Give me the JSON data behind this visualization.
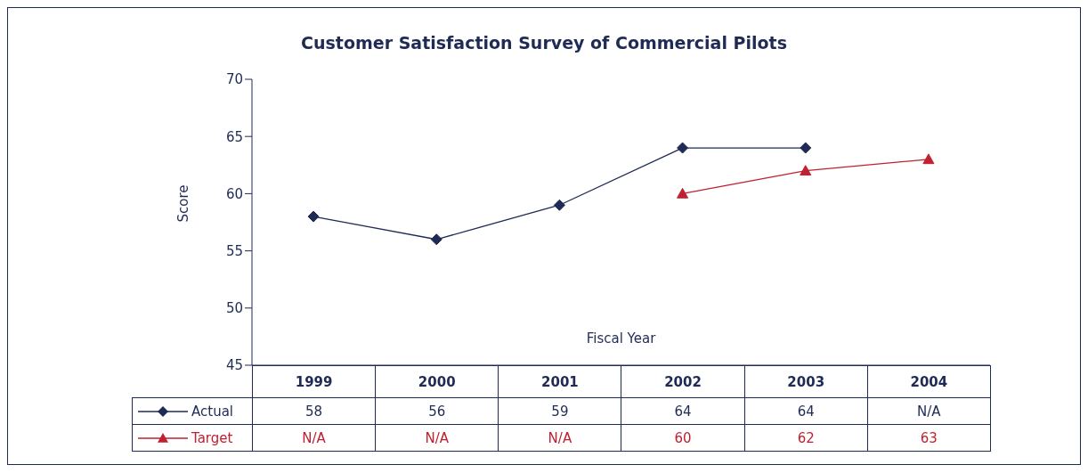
{
  "chart_data": {
    "type": "line",
    "title": "Customer Satisfaction Survey of Commercial Pilots",
    "xlabel": "Fiscal Year",
    "ylabel": "Score",
    "categories": [
      "1999",
      "2000",
      "2001",
      "2002",
      "2003",
      "2004"
    ],
    "series": [
      {
        "name": "Actual",
        "color": "#1f2a55",
        "marker": "diamond",
        "values": [
          58,
          56,
          59,
          64,
          64,
          null
        ],
        "value_labels": [
          "58",
          "56",
          "59",
          "64",
          "64",
          "N/A"
        ]
      },
      {
        "name": "Target",
        "color": "#c0202f",
        "marker": "triangle",
        "values": [
          null,
          null,
          null,
          60,
          62,
          63
        ],
        "value_labels": [
          "N/A",
          "N/A",
          "N/A",
          "60",
          "62",
          "63"
        ]
      }
    ],
    "ylim": [
      45,
      70
    ],
    "yticks": [
      45,
      50,
      55,
      60,
      65,
      70
    ],
    "legend": "bottom left",
    "line_style": "solid"
  }
}
